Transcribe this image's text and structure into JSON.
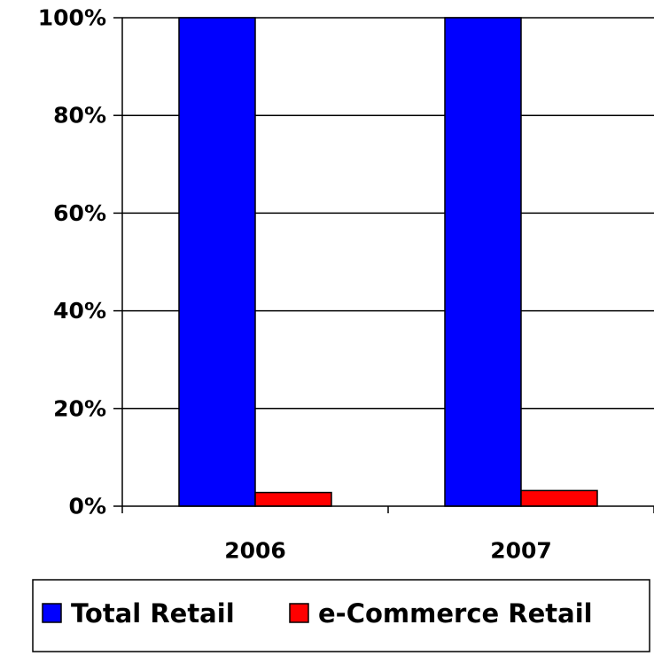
{
  "chart_data": {
    "type": "bar",
    "categories": [
      "2006",
      "2007"
    ],
    "series": [
      {
        "name": "Total Retail",
        "values": [
          100,
          100
        ],
        "color": "#0000FF"
      },
      {
        "name": "e-Commerce Retail",
        "values": [
          2.8,
          3.2
        ],
        "color": "#FF0000"
      }
    ],
    "ylim": [
      0,
      100
    ],
    "y_ticks": [
      0,
      20,
      40,
      60,
      80,
      100
    ],
    "y_tick_labels": [
      "0%",
      "20%",
      "40%",
      "60%",
      "80%",
      "100%"
    ],
    "grid": true,
    "legend_position": "bottom"
  }
}
